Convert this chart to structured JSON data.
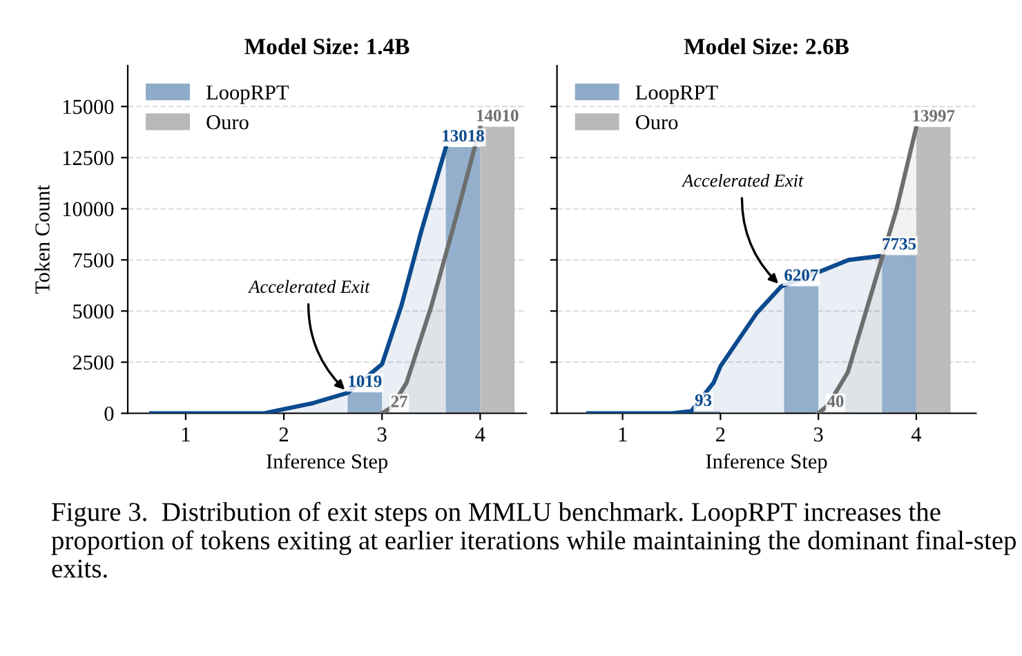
{
  "chart_data": [
    {
      "type": "bar",
      "title": "Model Size: 1.4B",
      "xlabel": "Inference Step",
      "ylabel": "Token Count",
      "xlim": [
        0.41,
        4.47
      ],
      "xticks": [
        1,
        2,
        3,
        4
      ],
      "ylim": [
        0,
        17000
      ],
      "yticks": [
        0,
        2500,
        5000,
        7500,
        10000,
        12500,
        15000
      ],
      "grid": "y",
      "legend": "top left",
      "series": [
        {
          "name": "LoopRPT",
          "color": "#8eabc9",
          "x": [
            0.825,
            1.825,
            2.825,
            3.825
          ],
          "values": [
            0,
            0,
            1019,
            13018
          ],
          "value_labels": [
            null,
            null,
            "1019",
            "13018"
          ]
        },
        {
          "name": "Ouro",
          "color": "#b8b8b8",
          "x": [
            1.175,
            2.175,
            3.175,
            4.175
          ],
          "values": [
            0,
            0,
            27,
            14010
          ],
          "value_labels": [
            null,
            null,
            "27",
            "14010"
          ]
        },
        {
          "type": "area",
          "color": "#0b4a8e",
          "x": [
            0.65,
            1.5,
            1.8,
            2.0,
            2.3,
            2.65,
            3.0,
            3.2,
            3.4,
            3.65
          ],
          "values": [
            0,
            0,
            0,
            200,
            500,
            1000,
            2400,
            5300,
            8900,
            13000
          ]
        },
        {
          "type": "area",
          "color": "#6e6e6e",
          "x": [
            3.0,
            3.1,
            3.25,
            3.5,
            3.75,
            4.0
          ],
          "values": [
            0,
            300,
            1500,
            5200,
            9500,
            14010
          ]
        }
      ],
      "annotations": [
        {
          "text": "Accelerated Exit",
          "x": 2.65,
          "y": 1019
        },
        "Figure 3.  Distribution of exit steps on MMLU benchmark. LoopRPT increases the proportion of tokens exiting at earlier iterations while maintaining the dominant final-step exits."
      ]
    },
    {
      "type": "bar",
      "title": "Model Size: 2.6B",
      "xlabel": "Inference Step",
      "xlim": [
        0.33,
        4.61
      ],
      "xticks": [
        1,
        2,
        3,
        4
      ],
      "ylim": [
        0,
        17000
      ],
      "yticks": [
        0,
        2500,
        5000,
        7500,
        10000,
        12500,
        15000
      ],
      "tick_labels": "x",
      "grid": "y",
      "legend": "top left",
      "series": [
        {
          "name": "LoopRPT",
          "color": "#8eabc9",
          "x": [
            0.825,
            1.825,
            2.825,
            3.825
          ],
          "values": [
            0,
            93,
            6207,
            7735
          ],
          "value_labels": [
            null,
            "93",
            "6207",
            "7735"
          ]
        },
        {
          "name": "Ouro",
          "color": "#b8b8b8",
          "x": [
            1.175,
            2.175,
            3.175,
            4.175
          ],
          "values": [
            0,
            0,
            40,
            13997
          ],
          "value_labels": [
            null,
            null,
            "40",
            "13997"
          ]
        },
        {
          "type": "area",
          "color": "#0b4a8e",
          "x": [
            0.65,
            1.5,
            1.7,
            1.93,
            2.0,
            2.37,
            2.62,
            3.0,
            3.31,
            3.65
          ],
          "values": [
            0,
            0,
            100,
            1500,
            2300,
            4900,
            6200,
            6900,
            7500,
            7700
          ]
        },
        {
          "type": "area",
          "color": "#6e6e6e",
          "x": [
            3.0,
            3.1,
            3.3,
            3.5,
            3.65,
            3.8,
            4.0
          ],
          "values": [
            0,
            400,
            2000,
            5200,
            7600,
            10000,
            14000
          ]
        }
      ],
      "annotations": [
        {
          "text": "Accelerated Exit",
          "x": 2.62,
          "y": 6207
        }
      ]
    }
  ]
}
